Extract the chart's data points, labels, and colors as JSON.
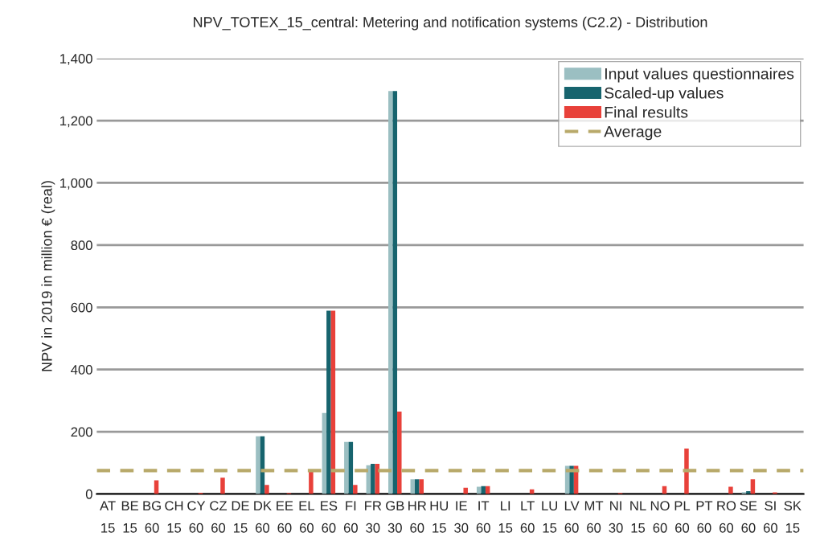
{
  "chart_data": {
    "type": "bar",
    "title": "NPV_TOTEX_15_central: Metering and notification systems (C2.2) - Distribution",
    "ylabel": "NPV in 2019 in million € (real)",
    "categories": [
      "AT\n15",
      "BE\n15",
      "BG\n60",
      "CH\n15",
      "CY\n60",
      "CZ\n60",
      "DE\n15",
      "DK\n60",
      "EE\n60",
      "EL\n60",
      "ES\n60",
      "FI\n60",
      "FR\n30",
      "GB\n30",
      "HR\n60",
      "HU\n15",
      "IE\n30",
      "IT\n60",
      "LI\n15",
      "LT\n60",
      "LU\n15",
      "LV\n60",
      "MT\n60",
      "NI\n30",
      "NL\n15",
      "NO\n60",
      "PL\n60",
      "PT\n60",
      "RO\n60",
      "SE\n60",
      "SI\n60",
      "SK\n15"
    ],
    "series": [
      {
        "name": "Input values questionnaires",
        "color": "#9bbfc2",
        "values": [
          0,
          0,
          0,
          0,
          0,
          0,
          0,
          185,
          0,
          0,
          260,
          167,
          92,
          1295,
          47,
          0,
          0,
          23,
          0,
          0,
          0,
          90,
          0,
          0,
          0,
          0,
          0,
          0,
          0,
          6,
          0,
          0
        ]
      },
      {
        "name": "Scaled-up values",
        "color": "#17646e",
        "values": [
          0,
          0,
          0,
          0,
          0,
          0,
          0,
          185,
          0,
          0,
          589,
          167,
          97,
          1295,
          47,
          0,
          0,
          25,
          0,
          0,
          0,
          90,
          0,
          0,
          0,
          0,
          0,
          0,
          0,
          9,
          0,
          0
        ]
      },
      {
        "name": "Final results",
        "color": "#e8413a",
        "values": [
          0,
          0,
          44,
          0,
          4,
          52,
          0,
          29,
          3,
          72,
          589,
          29,
          97,
          265,
          47,
          0,
          20,
          25,
          0,
          15,
          0,
          90,
          0,
          3,
          0,
          25,
          146,
          0,
          23,
          47,
          5,
          0
        ]
      }
    ],
    "ref_lines": [
      {
        "axis": "y",
        "value": 75,
        "label": "Average",
        "color": "#b8a96a",
        "line_style": "dashed"
      }
    ],
    "ylim": [
      0,
      1400
    ],
    "yticks": [
      0,
      {
        "value": 200,
        "label": "200"
      },
      {
        "value": 400,
        "label": "400"
      },
      {
        "value": 600,
        "label": "600"
      },
      {
        "value": 800,
        "label": "800"
      },
      {
        "value": 1000,
        "label": "1,000"
      },
      {
        "value": 1200,
        "label": "1,200"
      },
      {
        "value": 1400,
        "label": "1,400"
      }
    ],
    "grid": "y",
    "legend": "top right"
  }
}
